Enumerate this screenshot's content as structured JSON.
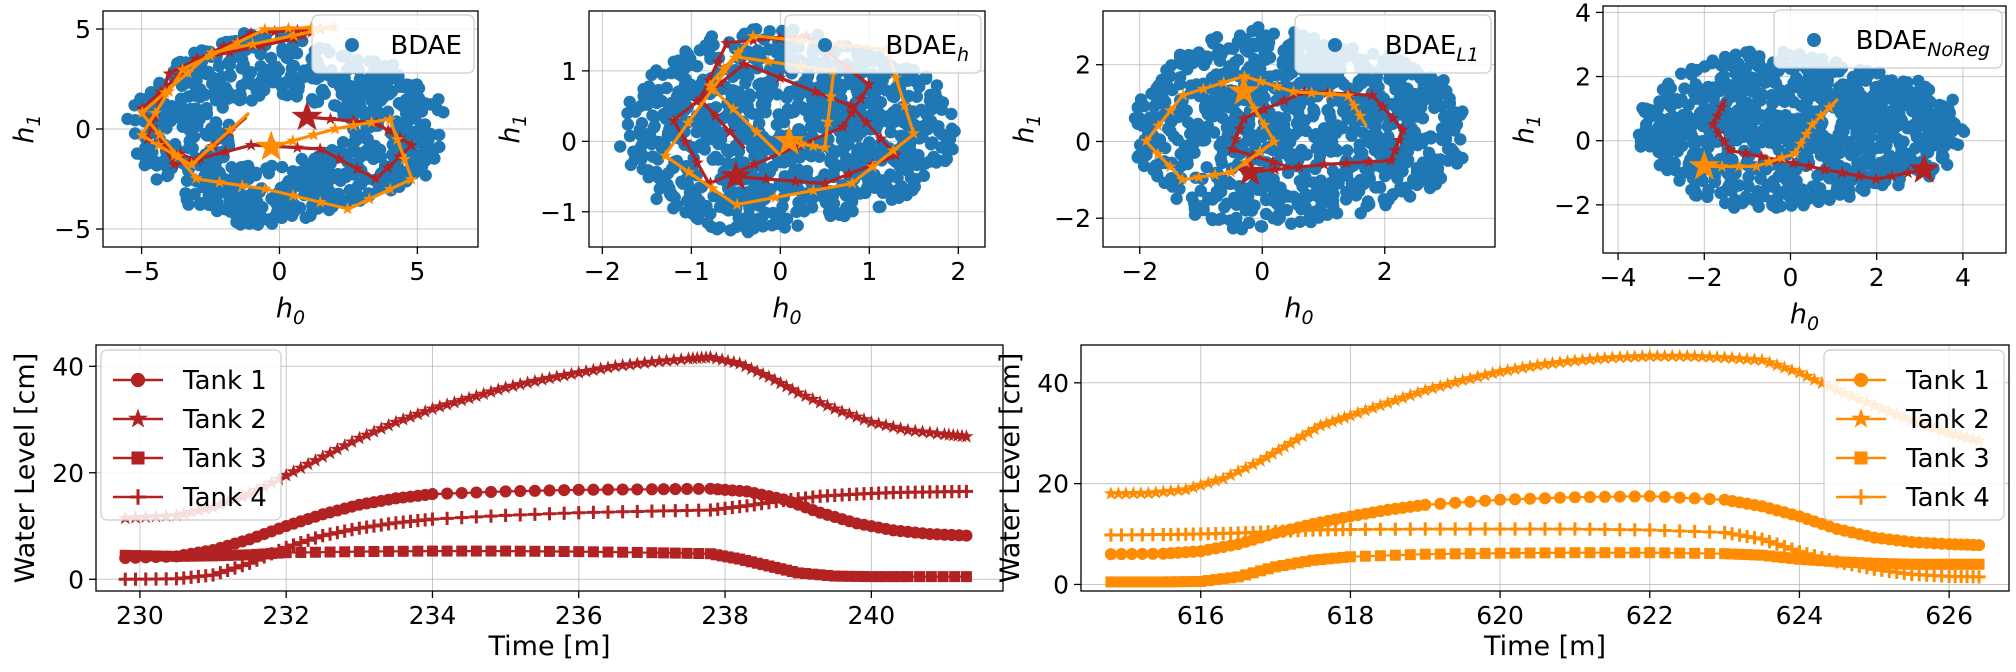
{
  "colors": {
    "scatter": "#1f77b4",
    "dark_red": "#b22222",
    "orange": "#ff8c00"
  },
  "chart_data": [
    {
      "type": "scatter",
      "xlabel": "h",
      "xlabel_sub": "0",
      "ylabel": "h",
      "ylabel_sub": "1",
      "xlim": [
        -6.4,
        7.2
      ],
      "ylim": [
        -5.9,
        5.9
      ],
      "xticks": [
        -5,
        0,
        5
      ],
      "xtick_labels": [
        "−5",
        "0",
        "5"
      ],
      "yticks": [
        -5,
        0,
        5
      ],
      "ytick_labels": [
        "−5",
        "0",
        "5"
      ],
      "grid": true,
      "legend": {
        "placement": "top-right",
        "entries": [
          {
            "label": "BDAE",
            "label_sub": ""
          }
        ]
      },
      "cloud": {
        "center": [
          0.3,
          0
        ],
        "rx": 5.9,
        "ry": 5.0,
        "hole": true
      },
      "trajectories": [
        {
          "color_key": "dark_red",
          "points": [
            [
              -1.2,
              0.6
            ],
            [
              -3.0,
              -1.6
            ],
            [
              -4.8,
              -0.5
            ],
            [
              -4.0,
              2.8
            ],
            [
              -1.0,
              4.8
            ],
            [
              1.5,
              5.0
            ],
            [
              0.5,
              4.5
            ],
            [
              -3.0,
              3.5
            ],
            [
              -5.0,
              1.0
            ],
            [
              -3.8,
              -1.8
            ],
            [
              -1.0,
              -0.8
            ],
            [
              1.5,
              -1.0
            ],
            [
              3.5,
              -2.5
            ],
            [
              4.8,
              -0.8
            ],
            [
              3.5,
              0.3
            ],
            [
              1.0,
              0.6
            ]
          ]
        },
        {
          "color_key": "orange",
          "points": [
            [
              -1.1,
              0.8
            ],
            [
              -3.2,
              -1.8
            ],
            [
              -5.0,
              -0.3
            ],
            [
              -3.5,
              3.0
            ],
            [
              -0.5,
              5.0
            ],
            [
              2.0,
              5.1
            ],
            [
              -2.5,
              3.8
            ],
            [
              -5.0,
              0.8
            ],
            [
              -3.0,
              -2.5
            ],
            [
              -0.5,
              -3.0
            ],
            [
              2.5,
              -4.0
            ],
            [
              4.8,
              -2.5
            ],
            [
              4.0,
              0.5
            ],
            [
              2.0,
              0.0
            ],
            [
              -0.3,
              -0.9
            ]
          ]
        }
      ]
    },
    {
      "type": "scatter",
      "xlabel": "h",
      "xlabel_sub": "0",
      "ylabel": "h",
      "ylabel_sub": "1",
      "xlim": [
        -2.15,
        2.3
      ],
      "ylim": [
        -1.5,
        1.85
      ],
      "xticks": [
        -2,
        -1,
        0,
        1,
        2
      ],
      "xtick_labels": [
        "−2",
        "−1",
        "0",
        "1",
        "2"
      ],
      "yticks": [
        -1,
        0,
        1
      ],
      "ytick_labels": [
        "−1",
        "0",
        "1"
      ],
      "grid": true,
      "legend": {
        "placement": "top-right",
        "entries": [
          {
            "label": "BDAE",
            "label_sub": "h"
          }
        ]
      },
      "cloud": {
        "center": [
          0.1,
          0.15
        ],
        "rx": 1.95,
        "ry": 1.55,
        "hole": false
      },
      "trajectories": [
        {
          "color_key": "dark_red",
          "points": [
            [
              -0.4,
              -0.1
            ],
            [
              -0.9,
              0.6
            ],
            [
              -0.6,
              1.4
            ],
            [
              0.3,
              1.5
            ],
            [
              1.0,
              0.8
            ],
            [
              0.7,
              0.2
            ],
            [
              -0.8,
              -0.6
            ],
            [
              -1.2,
              0.3
            ],
            [
              -0.4,
              1.1
            ],
            [
              0.8,
              0.5
            ],
            [
              1.3,
              -0.2
            ],
            [
              0.5,
              -0.6
            ],
            [
              -0.5,
              -0.5
            ]
          ]
        },
        {
          "color_key": "orange",
          "points": [
            [
              0.0,
              -0.2
            ],
            [
              -0.8,
              0.8
            ],
            [
              -0.3,
              1.5
            ],
            [
              1.2,
              1.3
            ],
            [
              1.5,
              0.1
            ],
            [
              0.8,
              -0.6
            ],
            [
              -0.5,
              -0.9
            ],
            [
              -1.3,
              -0.2
            ],
            [
              -0.5,
              1.2
            ],
            [
              0.6,
              1.0
            ],
            [
              0.5,
              -0.1
            ],
            [
              0.1,
              0.0
            ]
          ]
        }
      ]
    },
    {
      "type": "scatter",
      "xlabel": "h",
      "xlabel_sub": "0",
      "ylabel": "h",
      "ylabel_sub": "1",
      "xlim": [
        -2.6,
        3.8
      ],
      "ylim": [
        -2.75,
        3.4
      ],
      "xticks": [
        -2,
        0,
        2
      ],
      "xtick_labels": [
        "−2",
        "0",
        "2"
      ],
      "yticks": [
        -2,
        0,
        2
      ],
      "ytick_labels": [
        "−2",
        "0",
        "2"
      ],
      "grid": true,
      "legend": {
        "placement": "top-right",
        "entries": [
          {
            "label": "BDAE",
            "label_sub": "L1"
          }
        ]
      },
      "cloud": {
        "center": [
          0.6,
          0.3
        ],
        "rx": 2.85,
        "ry": 2.75,
        "hole": false
      },
      "trajectories": [
        {
          "color_key": "dark_red",
          "points": [
            [
              0.5,
              -0.7
            ],
            [
              -0.5,
              -0.2
            ],
            [
              -0.3,
              0.6
            ],
            [
              0.7,
              1.3
            ],
            [
              1.8,
              1.2
            ],
            [
              2.3,
              0.3
            ],
            [
              2.1,
              -0.5
            ],
            [
              1.0,
              -0.6
            ],
            [
              -0.2,
              -0.8
            ]
          ]
        },
        {
          "color_key": "orange",
          "points": [
            [
              1.7,
              0.4
            ],
            [
              1.4,
              1.2
            ],
            [
              0.5,
              1.3
            ],
            [
              -0.3,
              1.7
            ],
            [
              -1.3,
              1.2
            ],
            [
              -1.9,
              0.0
            ],
            [
              -1.3,
              -1.0
            ],
            [
              -0.5,
              -0.8
            ],
            [
              0.2,
              0.0
            ],
            [
              -0.3,
              1.3
            ]
          ]
        }
      ]
    },
    {
      "type": "scatter",
      "xlabel": "h",
      "xlabel_sub": "0",
      "ylabel": "h",
      "ylabel_sub": "1",
      "xlim": [
        -4.35,
        5.0
      ],
      "ylim": [
        -3.5,
        4.2
      ],
      "xticks": [
        -4,
        -2,
        0,
        2,
        4
      ],
      "xtick_labels": [
        "−4",
        "−2",
        "0",
        "2",
        "4"
      ],
      "yticks": [
        -2,
        0,
        2,
        4
      ],
      "ytick_labels": [
        "−2",
        "0",
        "2",
        "4"
      ],
      "grid": true,
      "legend": {
        "placement": "top-right",
        "entries": [
          {
            "label": "BDAE",
            "label_sub": "NoReg"
          }
        ]
      },
      "cloud": {
        "center": [
          0.2,
          0.3
        ],
        "rx": 3.9,
        "ry": 2.6,
        "hole": false
      },
      "trajectories": [
        {
          "color_key": "dark_red",
          "points": [
            [
              -1.5,
              1.3
            ],
            [
              -1.8,
              0.5
            ],
            [
              -1.4,
              -0.3
            ],
            [
              -0.3,
              -0.6
            ],
            [
              0.8,
              -0.9
            ],
            [
              2.0,
              -1.2
            ],
            [
              3.1,
              -0.9
            ]
          ]
        },
        {
          "color_key": "orange",
          "points": [
            [
              1.1,
              1.3
            ],
            [
              0.5,
              0.5
            ],
            [
              0.1,
              -0.4
            ],
            [
              -0.8,
              -0.8
            ],
            [
              -2.0,
              -0.8
            ]
          ]
        }
      ]
    },
    {
      "type": "line",
      "xlabel": "Time [m]",
      "ylabel": "Water Level [cm]",
      "xlim": [
        229.4,
        241.8
      ],
      "ylim": [
        -2.2,
        44.0
      ],
      "xticks": [
        230,
        232,
        234,
        236,
        238,
        240
      ],
      "xtick_labels": [
        "230",
        "232",
        "234",
        "236",
        "238",
        "240"
      ],
      "yticks": [
        0,
        20,
        40
      ],
      "ytick_labels": [
        "0",
        "20",
        "40"
      ],
      "grid": true,
      "legend": {
        "placement": "top-left"
      },
      "color_key": "dark_red",
      "series": [
        {
          "name": "Tank 1",
          "marker": "circle",
          "x": [
            229.8,
            230.5,
            231.0,
            231.5,
            232.0,
            232.5,
            233.0,
            233.5,
            234.0,
            235.0,
            236.0,
            237.0,
            237.8,
            238.3,
            238.8,
            239.3,
            239.8,
            240.3,
            240.8,
            241.3
          ],
          "y": [
            4.0,
            4.3,
            5.5,
            7.5,
            10.0,
            12.2,
            14.0,
            15.2,
            16.0,
            16.5,
            16.8,
            16.9,
            17.0,
            16.5,
            15.0,
            12.5,
            10.5,
            9.2,
            8.5,
            8.2
          ]
        },
        {
          "name": "Tank 2",
          "marker": "star",
          "x": [
            229.8,
            230.5,
            231.0,
            231.5,
            232.0,
            232.5,
            233.0,
            233.5,
            234.0,
            234.5,
            235.0,
            235.5,
            236.0,
            236.5,
            237.0,
            237.5,
            237.8,
            238.2,
            238.6,
            239.0,
            239.5,
            240.0,
            240.5,
            241.0,
            241.3
          ],
          "y": [
            11.5,
            12.0,
            13.5,
            16.0,
            19.5,
            23.0,
            26.5,
            29.5,
            32.0,
            34.0,
            36.0,
            37.5,
            38.8,
            40.0,
            40.8,
            41.4,
            41.7,
            40.5,
            38.0,
            35.0,
            32.0,
            29.5,
            28.0,
            27.2,
            26.8
          ]
        },
        {
          "name": "Tank 3",
          "marker": "square",
          "x": [
            229.8,
            230.5,
            231.0,
            231.5,
            232.0,
            233.0,
            234.0,
            235.0,
            236.0,
            237.0,
            237.8,
            238.2,
            238.6,
            239.0,
            239.5,
            240.0,
            240.5,
            241.3
          ],
          "y": [
            4.5,
            4.3,
            4.4,
            4.6,
            5.0,
            5.2,
            5.3,
            5.3,
            5.2,
            5.0,
            4.8,
            3.8,
            2.5,
            1.2,
            0.6,
            0.5,
            0.5,
            0.5
          ]
        },
        {
          "name": "Tank 4",
          "marker": "plus",
          "x": [
            229.8,
            230.5,
            231.0,
            231.5,
            232.0,
            232.5,
            233.0,
            233.5,
            234.0,
            235.0,
            236.0,
            237.0,
            237.8,
            238.3,
            238.8,
            239.3,
            239.8,
            240.3,
            240.8,
            241.3
          ],
          "y": [
            0.0,
            0.1,
            0.8,
            3.0,
            6.0,
            8.2,
            9.6,
            10.6,
            11.3,
            12.0,
            12.5,
            12.8,
            13.0,
            13.8,
            14.8,
            15.6,
            16.0,
            16.3,
            16.4,
            16.5
          ]
        }
      ]
    },
    {
      "type": "line",
      "xlabel": "Time [m]",
      "ylabel": "Water Level [cm]",
      "xlim": [
        614.4,
        626.8
      ],
      "ylim": [
        -1.3,
        47.5
      ],
      "xticks": [
        616,
        618,
        620,
        622,
        624,
        626
      ],
      "xtick_labels": [
        "616",
        "618",
        "620",
        "622",
        "624",
        "626"
      ],
      "yticks": [
        0,
        20,
        40
      ],
      "ytick_labels": [
        "0",
        "20",
        "40"
      ],
      "grid": true,
      "legend": {
        "placement": "top-right"
      },
      "color_key": "orange",
      "series": [
        {
          "name": "Tank 1",
          "marker": "circle",
          "x": [
            614.8,
            615.5,
            616.0,
            616.5,
            617.0,
            617.5,
            618.0,
            618.5,
            619.0,
            620.0,
            621.0,
            622.0,
            623.0,
            623.5,
            624.0,
            624.5,
            625.0,
            625.5,
            626.0,
            626.4
          ],
          "y": [
            6.0,
            6.1,
            6.6,
            8.0,
            10.2,
            12.0,
            13.5,
            14.8,
            15.8,
            16.8,
            17.3,
            17.5,
            16.8,
            15.5,
            13.5,
            11.0,
            9.3,
            8.4,
            8.0,
            7.8
          ]
        },
        {
          "name": "Tank 2",
          "marker": "star",
          "x": [
            614.8,
            615.3,
            615.8,
            616.3,
            616.8,
            617.2,
            617.6,
            618.0,
            618.5,
            619.0,
            619.5,
            620.0,
            620.5,
            621.0,
            621.5,
            622.0,
            622.5,
            623.0,
            623.5,
            624.0,
            624.5,
            625.0,
            625.5,
            626.0,
            626.4
          ],
          "y": [
            18.0,
            18.1,
            18.8,
            21.0,
            24.5,
            28.0,
            31.5,
            33.5,
            36.0,
            38.5,
            40.5,
            42.2,
            43.5,
            44.4,
            45.0,
            45.3,
            45.3,
            45.0,
            44.5,
            42.0,
            38.5,
            35.5,
            32.5,
            30.0,
            28.5
          ]
        },
        {
          "name": "Tank 3",
          "marker": "square",
          "x": [
            614.8,
            615.5,
            616.0,
            616.5,
            617.0,
            617.5,
            618.0,
            619.0,
            620.0,
            621.0,
            622.0,
            623.0,
            623.5,
            624.0,
            624.5,
            625.0,
            625.5,
            626.0,
            626.4
          ],
          "y": [
            0.5,
            0.5,
            0.6,
            1.5,
            3.5,
            4.8,
            5.5,
            6.0,
            6.2,
            6.3,
            6.3,
            6.1,
            5.8,
            5.0,
            4.5,
            4.2,
            4.0,
            4.0,
            4.0
          ]
        },
        {
          "name": "Tank 4",
          "marker": "plus",
          "x": [
            614.8,
            615.5,
            616.0,
            616.5,
            617.0,
            617.5,
            618.0,
            619.0,
            620.0,
            621.0,
            622.0,
            623.0,
            623.5,
            624.0,
            624.5,
            625.0,
            625.5,
            626.0,
            626.4
          ],
          "y": [
            9.8,
            9.9,
            10.0,
            10.2,
            10.5,
            10.8,
            10.9,
            11.0,
            11.0,
            11.0,
            10.8,
            10.3,
            9.0,
            6.5,
            4.5,
            3.0,
            2.0,
            1.6,
            1.5
          ]
        }
      ]
    }
  ]
}
